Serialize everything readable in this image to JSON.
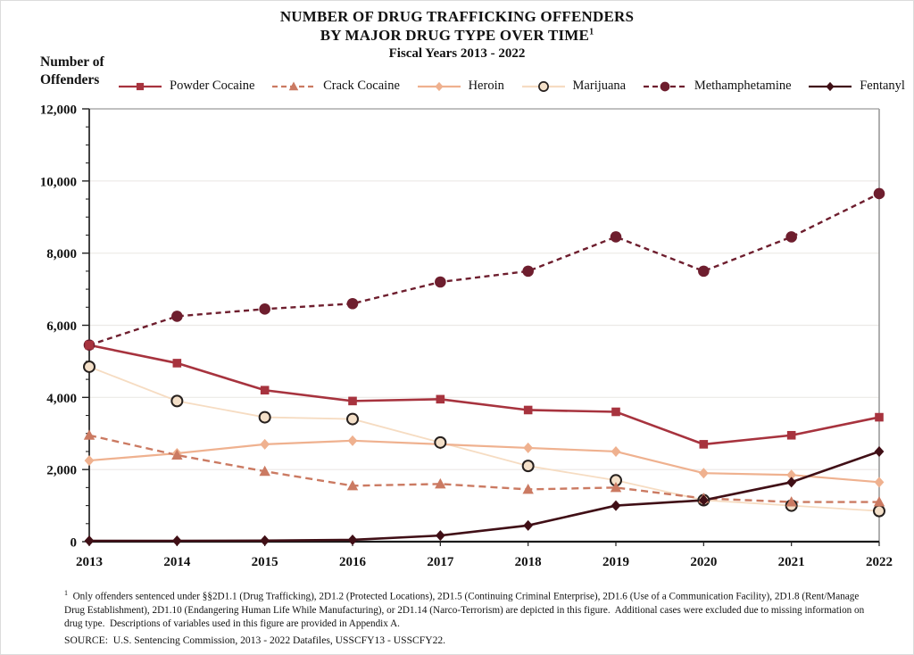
{
  "page": {
    "title_line1": "NUMBER OF DRUG TRAFFICKING OFFENDERS",
    "title_line2": "BY MAJOR DRUG TYPE OVER TIME",
    "title_line2_sup": "1",
    "title_line3": "Fiscal Years 2013 - 2022"
  },
  "y_axis_title_line1": "Number of",
  "y_axis_title_line2": "Offenders",
  "footnote_sup": "1",
  "footnote_text": "  Only offenders sentenced under §§2D1.1 (Drug Trafficking), 2D1.2 (Protected Locations), 2D1.5 (Continuing Criminal Enterprise), 2D1.6 (Use of a Communication Facility), 2D1.8 (Rent/Manage Drug Establishment), 2D1.10 (Endangering Human Life While Manufacturing), or 2D1.14 (Narco-Terrorism) are depicted in this figure.  Additional cases were excluded due to missing information on drug type.  Descriptions of variables used in this figure are provided in Appendix A.",
  "source_text": "SOURCE:  U.S. Sentencing Commission, 2013 - 2022 Datafiles, USSCFY13 - USSCFY22.",
  "chart_data": {
    "type": "line",
    "title": "NUMBER OF DRUG TRAFFICKING OFFENDERS BY MAJOR DRUG TYPE OVER TIME, Fiscal Years 2013 - 2022",
    "xlabel": "",
    "ylabel": "Number of Offenders",
    "ylim": [
      0,
      12000
    ],
    "y_major_step": 2000,
    "y_minor_step": 500,
    "grid": true,
    "legend_position": "top",
    "categories": [
      "2013",
      "2014",
      "2015",
      "2016",
      "2017",
      "2018",
      "2019",
      "2020",
      "2021",
      "2022"
    ],
    "series": [
      {
        "name": "Powder Cocaine",
        "marker": "square",
        "line": "solid",
        "color": "#A7333E",
        "values": [
          5450,
          4950,
          4200,
          3900,
          3950,
          3650,
          3600,
          2700,
          2950,
          3450
        ]
      },
      {
        "name": "Crack Cocaine",
        "marker": "triangle",
        "line": "dashed",
        "color": "#CB7A62",
        "values": [
          2950,
          2400,
          1950,
          1550,
          1600,
          1450,
          1500,
          1200,
          1100,
          1100
        ]
      },
      {
        "name": "Heroin",
        "marker": "diamond",
        "line": "solid",
        "color": "#EFB18F",
        "values": [
          2250,
          2450,
          2700,
          2800,
          2700,
          2600,
          2500,
          1900,
          1850,
          1650
        ]
      },
      {
        "name": "Marijuana",
        "marker": "circle-open",
        "line": "solid",
        "color": "#F6DCC2",
        "marker_fill": "#F4E0C9",
        "marker_stroke": "#26201E",
        "values": [
          4850,
          3900,
          3450,
          3400,
          2750,
          2100,
          1700,
          1150,
          1000,
          850
        ]
      },
      {
        "name": "Methamphetamine",
        "marker": "circle",
        "line": "dashed",
        "color": "#6E1E2E",
        "values": [
          5450,
          6250,
          6450,
          6600,
          7200,
          7500,
          8450,
          7500,
          8450,
          9650
        ]
      },
      {
        "name": "Fentanyl",
        "marker": "diamond",
        "line": "solid",
        "color": "#400F16",
        "values": [
          25,
          25,
          30,
          50,
          170,
          450,
          1000,
          1150,
          1650,
          2500
        ]
      }
    ]
  }
}
